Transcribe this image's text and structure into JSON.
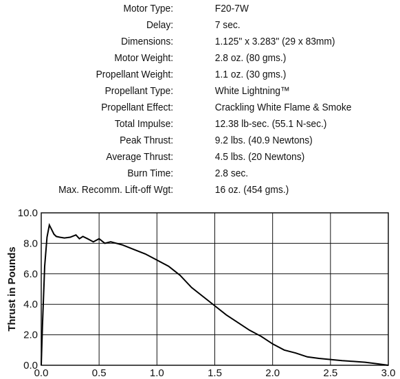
{
  "specs": [
    {
      "label": "Motor Type:",
      "value": "F20-7W"
    },
    {
      "label": "Delay:",
      "value": "7 sec."
    },
    {
      "label": "Dimensions:",
      "value": "1.125\" x 3.283\" (29 x 83mm)"
    },
    {
      "label": "Motor Weight:",
      "value": "2.8 oz. (80 gms.)"
    },
    {
      "label": "Propellant Weight:",
      "value": "1.1 oz. (30 gms.)"
    },
    {
      "label": "Propellant Type:",
      "value": "White Lightning™"
    },
    {
      "label": "Propellant Effect:",
      "value": "Crackling White Flame & Smoke"
    },
    {
      "label": "Total  Impulse:",
      "value": "12.38 lb-sec. (55.1 N-sec.)"
    },
    {
      "label": "Peak Thrust:",
      "value": "9.2 lbs. (40.9 Newtons)"
    },
    {
      "label": "Average Thrust:",
      "value": "4.5 lbs. (20 Newtons)"
    },
    {
      "label": "Burn Time:",
      "value": "2.8 sec."
    },
    {
      "label": "Max. Recomm. Lift-off Wgt:",
      "value": "16 oz. (454 gms.)"
    }
  ],
  "chart_data": {
    "type": "line",
    "title": "",
    "xlabel": "",
    "ylabel": "Thrust in Pounds",
    "xlim": [
      0.0,
      3.0
    ],
    "ylim": [
      0.0,
      10.0
    ],
    "x_ticks": [
      "0.0",
      "0.5",
      "1.0",
      "1.5",
      "2.0",
      "2.5",
      "3.0"
    ],
    "y_ticks": [
      "0.0",
      "2.0",
      "4.0",
      "6.0",
      "8.0",
      "10.0"
    ],
    "grid": true,
    "series": [
      {
        "x": [
          0.0,
          0.01,
          0.03,
          0.05,
          0.07,
          0.09,
          0.11,
          0.13,
          0.16,
          0.2,
          0.25,
          0.3,
          0.33,
          0.36,
          0.4,
          0.45,
          0.5,
          0.55,
          0.6,
          0.7,
          0.8,
          0.9,
          1.0,
          1.1,
          1.2,
          1.3,
          1.4,
          1.5,
          1.6,
          1.7,
          1.8,
          1.9,
          2.0,
          2.1,
          2.2,
          2.3,
          2.4,
          2.5,
          2.6,
          2.7,
          2.8,
          2.9,
          3.0
        ],
        "y": [
          0.0,
          2.5,
          6.5,
          8.4,
          9.2,
          8.9,
          8.6,
          8.45,
          8.4,
          8.35,
          8.4,
          8.55,
          8.3,
          8.45,
          8.3,
          8.1,
          8.3,
          8.0,
          8.1,
          7.9,
          7.6,
          7.3,
          6.9,
          6.5,
          5.9,
          5.1,
          4.5,
          3.9,
          3.3,
          2.8,
          2.3,
          1.9,
          1.4,
          1.0,
          0.8,
          0.55,
          0.45,
          0.38,
          0.3,
          0.25,
          0.2,
          0.1,
          0.0
        ]
      }
    ]
  }
}
